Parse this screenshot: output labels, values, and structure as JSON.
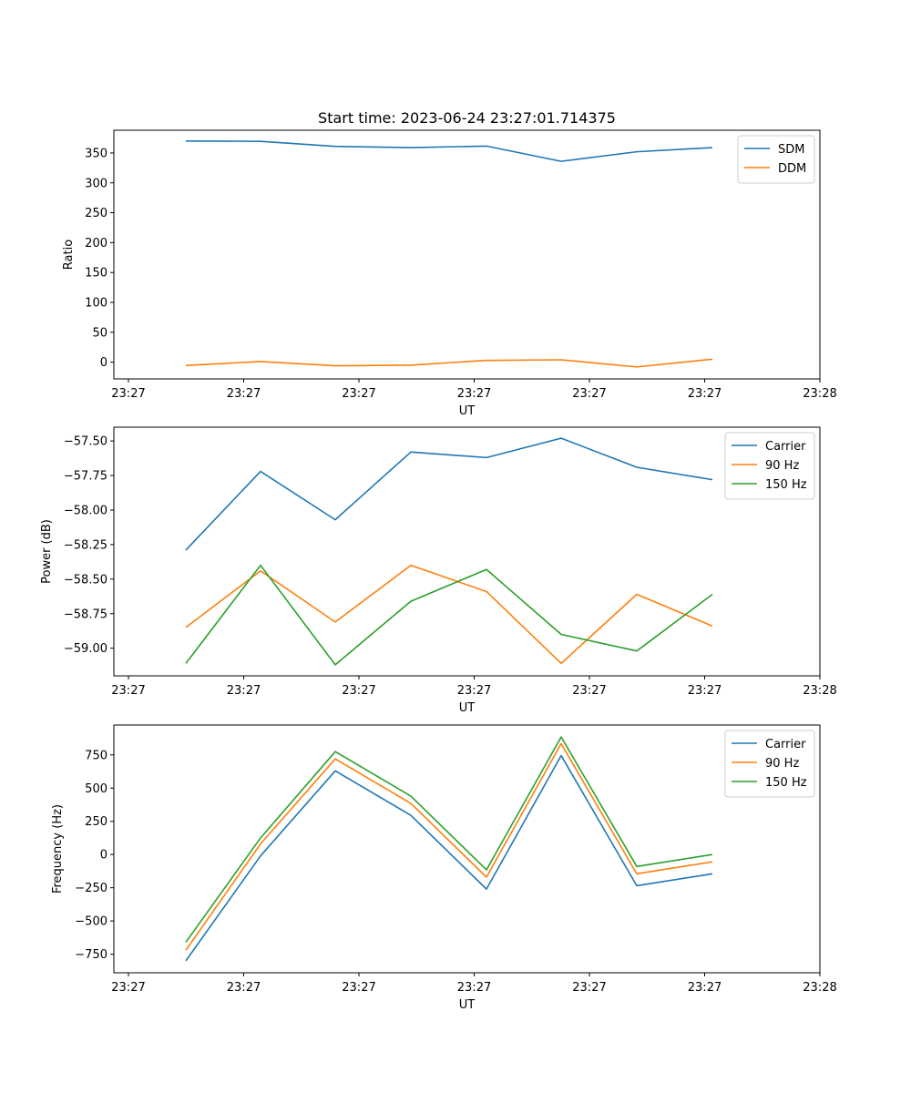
{
  "chart_data": [
    {
      "type": "line",
      "title": "Start time: 2023-06-24 23:27:01.714375",
      "xlabel": "UT",
      "ylabel": "Ratio",
      "x_tick_labels": [
        "23:27",
        "23:27",
        "23:27",
        "23:27",
        "23:27",
        "23:27",
        "23:28"
      ],
      "y_ticks": [
        0,
        50,
        100,
        150,
        200,
        250,
        300,
        350
      ],
      "y_tick_labels": [
        "0",
        "50",
        "100",
        "150",
        "200",
        "250",
        "300",
        "350"
      ],
      "ylim": [
        -28,
        388
      ],
      "legend_position": "top-right",
      "series": [
        {
          "name": "SDM",
          "color": "#1f77b4",
          "values": [
            370,
            369.5,
            361,
            359,
            361.5,
            336,
            352,
            359
          ]
        },
        {
          "name": "DDM",
          "color": "#ff7f0e",
          "values": [
            -5.5,
            1,
            -6,
            -5,
            3,
            4,
            -8,
            5
          ]
        }
      ]
    },
    {
      "type": "line",
      "title": "",
      "xlabel": "UT",
      "ylabel": "Power (dB)",
      "x_tick_labels": [
        "23:27",
        "23:27",
        "23:27",
        "23:27",
        "23:27",
        "23:27",
        "23:28"
      ],
      "y_ticks": [
        -59.0,
        -58.75,
        -58.5,
        -58.25,
        -58.0,
        -57.75,
        -57.5
      ],
      "y_tick_labels": [
        "−59.00",
        "−58.75",
        "−58.50",
        "−58.25",
        "−58.00",
        "−57.75",
        "−57.50"
      ],
      "ylim": [
        -59.2,
        -57.4
      ],
      "legend_position": "top-right",
      "series": [
        {
          "name": "Carrier",
          "color": "#1f77b4",
          "values": [
            -58.29,
            -57.72,
            -58.07,
            -57.58,
            -57.62,
            -57.48,
            -57.69,
            -57.78
          ]
        },
        {
          "name": "90 Hz",
          "color": "#ff7f0e",
          "values": [
            -58.85,
            -58.44,
            -58.81,
            -58.4,
            -58.59,
            -59.11,
            -58.61,
            -58.84
          ]
        },
        {
          "name": "150 Hz",
          "color": "#2ca02c",
          "values": [
            -59.11,
            -58.4,
            -59.12,
            -58.66,
            -58.43,
            -58.9,
            -59.02,
            -58.61
          ]
        }
      ]
    },
    {
      "type": "line",
      "title": "",
      "xlabel": "UT",
      "ylabel": "Frequency (Hz)",
      "x_tick_labels": [
        "23:27",
        "23:27",
        "23:27",
        "23:27",
        "23:27",
        "23:27",
        "23:28"
      ],
      "y_ticks": [
        -750,
        -500,
        -250,
        0,
        250,
        500,
        750
      ],
      "y_tick_labels": [
        "−750",
        "−500",
        "−250",
        "0",
        "250",
        "500",
        "750"
      ],
      "ylim": [
        -890,
        975
      ],
      "legend_position": "top-right",
      "series": [
        {
          "name": "Carrier",
          "color": "#1f77b4",
          "values": [
            -800,
            -10,
            630,
            295,
            -260,
            745,
            -235,
            -145
          ]
        },
        {
          "name": "90 Hz",
          "color": "#ff7f0e",
          "values": [
            -720,
            80,
            720,
            385,
            -170,
            835,
            -145,
            -55
          ]
        },
        {
          "name": "150 Hz",
          "color": "#2ca02c",
          "values": [
            -660,
            125,
            775,
            440,
            -115,
            885,
            -90,
            0
          ]
        }
      ]
    }
  ]
}
